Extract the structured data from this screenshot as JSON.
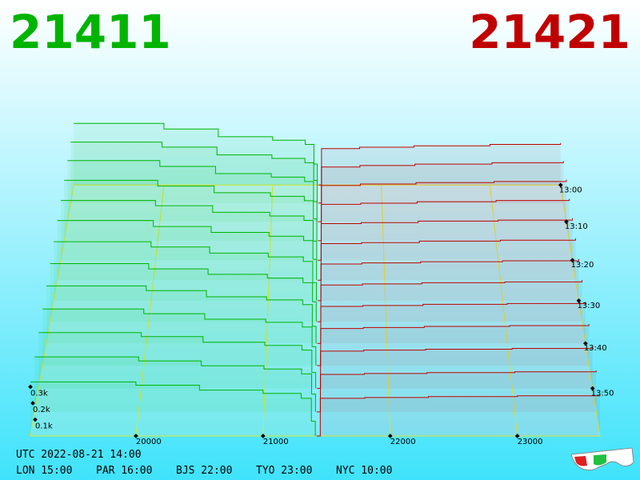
{
  "chart_data": {
    "type": "depth3d",
    "best_bid": 21411,
    "best_ask": 21421,
    "bid_color": "#00b400",
    "ask_color": "#c00000",
    "xlim": [
      19170,
      23650
    ],
    "xticks": [
      20000,
      21000,
      22000,
      23000
    ],
    "tlim": [
      0,
      60
    ],
    "tticks": [
      {
        "value": 0,
        "label": "13:00"
      },
      {
        "value": 10,
        "label": "13:10"
      },
      {
        "value": 20,
        "label": "13:20"
      },
      {
        "value": 30,
        "label": "13:30"
      },
      {
        "value": 40,
        "label": "13:40"
      },
      {
        "value": 50,
        "label": "13:50"
      }
    ],
    "zticks": [
      {
        "value": 100,
        "label": "0.1k"
      },
      {
        "value": 200,
        "label": "0.2k"
      },
      {
        "value": 300,
        "label": "0.3k"
      }
    ],
    "bids": {
      "prices": [
        19170,
        20000,
        20500,
        21000,
        21300,
        21380,
        21411
      ],
      "snapshots": [
        {
          "t": 0,
          "values": [
            440,
            400,
            345,
            320,
            290,
            150,
            0
          ]
        },
        {
          "t": 5,
          "values": [
            430,
            395,
            340,
            315,
            285,
            160,
            0
          ]
        },
        {
          "t": 10,
          "values": [
            425,
            385,
            335,
            310,
            280,
            140,
            0
          ]
        },
        {
          "t": 15,
          "values": [
            415,
            375,
            330,
            305,
            275,
            150,
            0
          ]
        },
        {
          "t": 20,
          "values": [
            405,
            370,
            325,
            300,
            270,
            130,
            0
          ]
        },
        {
          "t": 25,
          "values": [
            400,
            360,
            320,
            295,
            265,
            140,
            0
          ]
        },
        {
          "t": 30,
          "values": [
            390,
            355,
            315,
            290,
            260,
            120,
            0
          ]
        },
        {
          "t": 35,
          "values": [
            380,
            345,
            310,
            285,
            255,
            130,
            0
          ]
        },
        {
          "t": 40,
          "values": [
            370,
            340,
            300,
            280,
            250,
            110,
            0
          ]
        },
        {
          "t": 45,
          "values": [
            360,
            330,
            295,
            275,
            245,
            120,
            0
          ]
        },
        {
          "t": 50,
          "values": [
            350,
            325,
            290,
            270,
            240,
            100,
            0
          ]
        },
        {
          "t": 55,
          "values": [
            340,
            315,
            285,
            265,
            235,
            110,
            0
          ]
        },
        {
          "t": 60,
          "values": [
            330,
            310,
            280,
            260,
            230,
            90,
            0
          ]
        }
      ]
    },
    "asks": {
      "prices": [
        21421,
        21450,
        21800,
        22300,
        23000,
        23650
      ],
      "snapshots": [
        {
          "t": 0,
          "values": [
            0,
            260,
            270,
            280,
            290,
            300
          ]
        },
        {
          "t": 5,
          "values": [
            0,
            255,
            265,
            275,
            285,
            296
          ]
        },
        {
          "t": 10,
          "values": [
            0,
            252,
            262,
            272,
            280,
            292
          ]
        },
        {
          "t": 15,
          "values": [
            0,
            250,
            258,
            268,
            276,
            288
          ]
        },
        {
          "t": 20,
          "values": [
            0,
            248,
            255,
            265,
            272,
            284
          ]
        },
        {
          "t": 25,
          "values": [
            0,
            245,
            252,
            262,
            268,
            280
          ]
        },
        {
          "t": 30,
          "values": [
            0,
            243,
            250,
            258,
            264,
            276
          ]
        },
        {
          "t": 35,
          "values": [
            0,
            240,
            247,
            255,
            260,
            272
          ]
        },
        {
          "t": 40,
          "values": [
            0,
            238,
            244,
            252,
            257,
            268
          ]
        },
        {
          "t": 45,
          "values": [
            0,
            236,
            242,
            249,
            254,
            264
          ]
        },
        {
          "t": 50,
          "values": [
            0,
            234,
            240,
            246,
            251,
            259
          ]
        },
        {
          "t": 55,
          "values": [
            0,
            232,
            237,
            243,
            248,
            255
          ]
        },
        {
          "t": 60,
          "values": [
            0,
            230,
            235,
            240,
            245,
            250
          ]
        }
      ]
    }
  },
  "footer": {
    "utc": "UTC 2022-08-21 14:00",
    "clocks": [
      "LON 15:00",
      "PAR 16:00",
      "BJS 22:00",
      "TYO 23:00",
      "NYC 10:00"
    ]
  }
}
